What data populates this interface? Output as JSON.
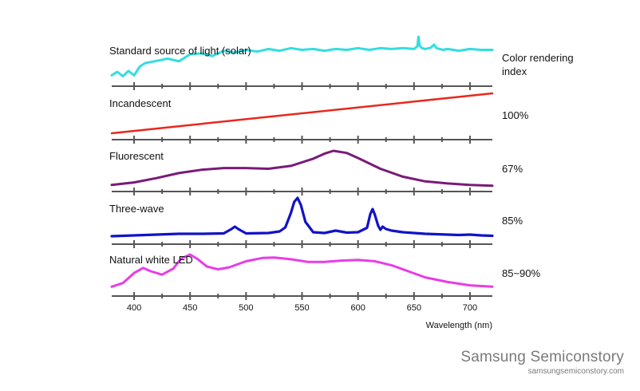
{
  "chart_data": {
    "type": "line",
    "title": "",
    "xlabel": "Wavelength (nm)",
    "ylabel": "",
    "xlim": [
      380,
      720
    ],
    "x_ticks": [
      400,
      450,
      500,
      550,
      600,
      650,
      700
    ],
    "cri_header": [
      "Color rendering",
      "index"
    ],
    "series": [
      {
        "name": "Standard source of light (solar)",
        "cri": "",
        "color": "#33dde0",
        "x": [
          380,
          385,
          390,
          395,
          400,
          405,
          410,
          420,
          430,
          440,
          450,
          460,
          470,
          480,
          490,
          500,
          510,
          520,
          530,
          540,
          550,
          560,
          570,
          580,
          590,
          600,
          610,
          620,
          630,
          640,
          650,
          653,
          654,
          655,
          657,
          660,
          665,
          668,
          670,
          673,
          676,
          680,
          690,
          700,
          710,
          720
        ],
        "y": [
          0.12,
          0.2,
          0.1,
          0.22,
          0.12,
          0.32,
          0.4,
          0.45,
          0.5,
          0.44,
          0.6,
          0.62,
          0.56,
          0.68,
          0.64,
          0.7,
          0.66,
          0.72,
          0.68,
          0.74,
          0.7,
          0.72,
          0.68,
          0.72,
          0.7,
          0.74,
          0.7,
          0.74,
          0.72,
          0.74,
          0.72,
          0.78,
          1.0,
          0.8,
          0.74,
          0.72,
          0.75,
          0.82,
          0.74,
          0.72,
          0.7,
          0.72,
          0.68,
          0.72,
          0.7,
          0.7
        ]
      },
      {
        "name": "Incandescent",
        "cri": "100%",
        "color": "#e8281e",
        "x": [
          380,
          720
        ],
        "y": [
          0.0,
          1.0
        ]
      },
      {
        "name": "Fluorescent",
        "cri": "67%",
        "color": "#7a1a78",
        "x": [
          380,
          400,
          420,
          440,
          460,
          480,
          500,
          520,
          540,
          560,
          570,
          578,
          590,
          600,
          620,
          640,
          660,
          680,
          700,
          720
        ],
        "y": [
          0.05,
          0.12,
          0.24,
          0.38,
          0.47,
          0.52,
          0.52,
          0.5,
          0.58,
          0.78,
          0.92,
          1.0,
          0.94,
          0.8,
          0.5,
          0.28,
          0.15,
          0.09,
          0.05,
          0.03
        ]
      },
      {
        "name": "Three-wave",
        "cri": "85%",
        "color": "#1212c8",
        "x": [
          380,
          400,
          420,
          440,
          460,
          480,
          487,
          490,
          493,
          500,
          520,
          530,
          535,
          540,
          543,
          546,
          549,
          553,
          560,
          570,
          580,
          590,
          600,
          608,
          611,
          613,
          615,
          618,
          620,
          622,
          625,
          630,
          640,
          650,
          660,
          670,
          680,
          690,
          700,
          710,
          720
        ],
        "y": [
          0.04,
          0.06,
          0.08,
          0.1,
          0.1,
          0.11,
          0.22,
          0.28,
          0.22,
          0.11,
          0.12,
          0.16,
          0.26,
          0.62,
          0.9,
          1.0,
          0.82,
          0.4,
          0.14,
          0.12,
          0.18,
          0.13,
          0.14,
          0.25,
          0.6,
          0.72,
          0.58,
          0.3,
          0.2,
          0.28,
          0.22,
          0.18,
          0.14,
          0.12,
          0.1,
          0.09,
          0.08,
          0.07,
          0.08,
          0.06,
          0.05
        ]
      },
      {
        "name": "Natural white LED",
        "cri": "85~90%",
        "color": "#e83ce8",
        "x": [
          380,
          390,
          400,
          408,
          415,
          425,
          435,
          442,
          450,
          457,
          465,
          475,
          485,
          500,
          515,
          525,
          540,
          555,
          570,
          585,
          600,
          615,
          630,
          645,
          660,
          680,
          700,
          720
        ],
        "y": [
          0.04,
          0.15,
          0.45,
          0.6,
          0.5,
          0.4,
          0.58,
          0.88,
          1.0,
          0.86,
          0.64,
          0.56,
          0.62,
          0.8,
          0.9,
          0.91,
          0.86,
          0.78,
          0.78,
          0.82,
          0.84,
          0.8,
          0.68,
          0.5,
          0.32,
          0.18,
          0.08,
          0.04
        ]
      }
    ]
  },
  "watermark": {
    "brand": "Samsung Semiconstory",
    "url": "samsungsemiconstory.com"
  }
}
